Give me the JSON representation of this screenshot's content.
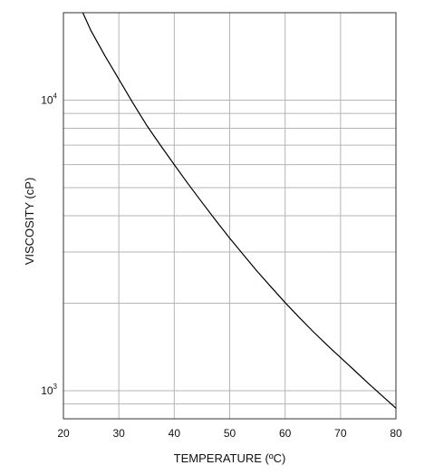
{
  "chart_data": {
    "type": "line",
    "xlabel": "TEMPERATURE (ºC)",
    "ylabel": "VISCOSITY (cP)",
    "y_scale": "log",
    "xlim": [
      20,
      80
    ],
    "ylim": [
      800,
      20000
    ],
    "x_ticks": [
      20,
      30,
      40,
      50,
      60,
      70,
      80
    ],
    "y_tick_labels": [
      {
        "value": 1000,
        "base": "10",
        "exp": "3"
      },
      {
        "value": 10000,
        "base": "10",
        "exp": "4"
      }
    ],
    "y_gridlines": [
      900,
      1000,
      2000,
      3000,
      4000,
      5000,
      6000,
      7000,
      8000,
      9000,
      10000
    ],
    "grid": true,
    "series": [
      {
        "x": [
          23.5,
          25,
          27.5,
          30,
          32.5,
          35,
          37.5,
          40,
          42.5,
          45,
          47.5,
          50,
          52.5,
          55,
          57.5,
          60,
          62.5,
          65,
          67.5,
          70,
          72.5,
          75,
          77.5,
          80
        ],
        "y": [
          20000,
          17300,
          14200,
          11800,
          9800,
          8200,
          7000,
          6000,
          5150,
          4450,
          3850,
          3350,
          2930,
          2570,
          2270,
          2010,
          1790,
          1600,
          1440,
          1300,
          1175,
          1060,
          960,
          870
        ],
        "color": "#000000"
      }
    ]
  }
}
